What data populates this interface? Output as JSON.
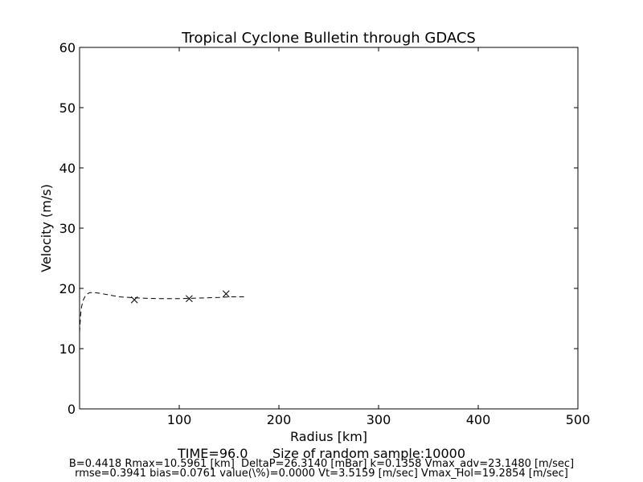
{
  "chart_data": {
    "type": "line",
    "title": "Tropical Cyclone Bulletin through GDACS",
    "xlabel": "Radius [km]",
    "ylabel": "Velocity (m/s)",
    "xlim": [
      0,
      500
    ],
    "ylim": [
      0,
      60
    ],
    "xticks": [
      100,
      200,
      300,
      400,
      500
    ],
    "yticks": [
      0,
      10,
      20,
      30,
      40,
      50,
      60
    ],
    "grid": false,
    "series": [
      {
        "style": "dashed",
        "color": "#000000",
        "x": [
          0,
          1,
          2,
          4,
          6,
          8,
          10,
          15,
          20,
          30,
          40,
          50,
          60,
          80,
          100,
          120,
          140,
          150,
          165
        ],
        "y": [
          12.7,
          15.5,
          17.0,
          18.2,
          18.8,
          19.1,
          19.3,
          19.3,
          19.2,
          18.9,
          18.6,
          18.5,
          18.4,
          18.3,
          18.3,
          18.4,
          18.5,
          18.6,
          18.6
        ]
      }
    ],
    "observations": {
      "marker": "x",
      "color": "#000000",
      "x": [
        55,
        110,
        147
      ],
      "y": [
        18.1,
        18.3,
        19.1
      ]
    }
  },
  "footer": {
    "time_line": "TIME=96.0      Size of random sample:10000",
    "params_line_1": "B=0.4418 Rmax=10.5961 [km]  DeltaP=26.3140 [mBar] k=0.1358 Vmax_adv=23.1480 [m/sec]",
    "params_line_2": "rmse=0.3941 bias=0.0761 value(\\%)=0.0000 Vt=3.5159 [m/sec] Vmax_Hol=19.2854 [m/sec]"
  }
}
